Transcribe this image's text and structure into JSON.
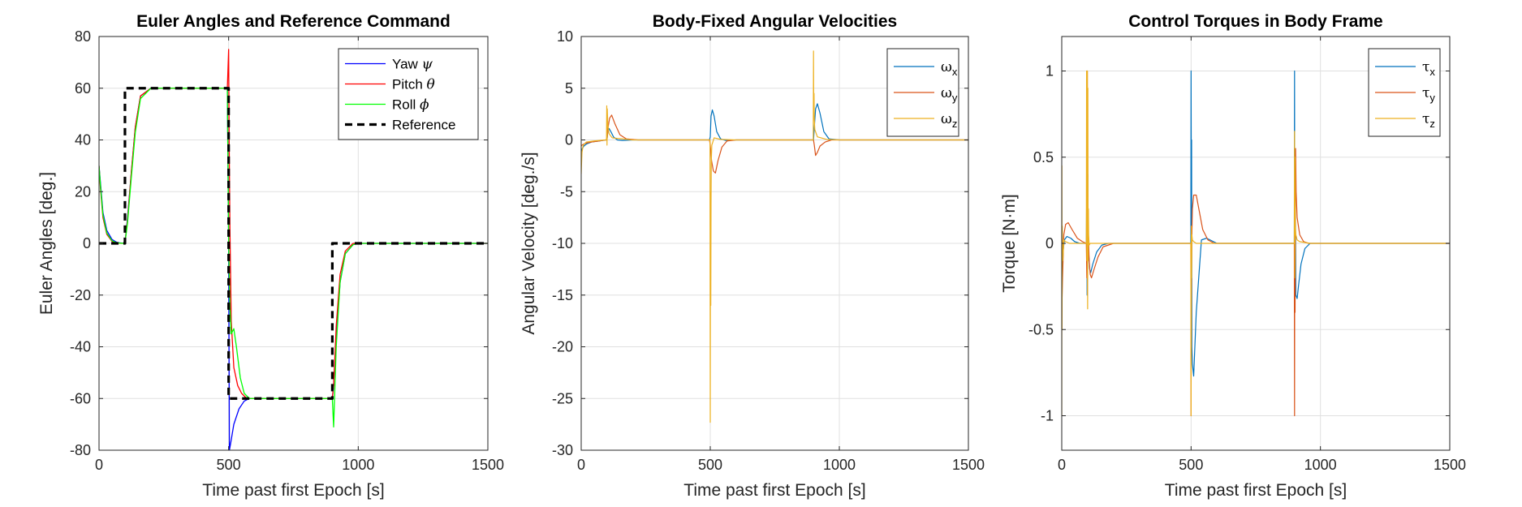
{
  "figure": {
    "background": "#ffffff",
    "grid_color": "#e0e0e0",
    "axis_color": "#262626"
  },
  "chart_data": [
    {
      "type": "line",
      "title": "Euler Angles and Reference Command",
      "xlabel": "Time past first Epoch [s]",
      "ylabel": "Euler Angles [deg.]",
      "xlim": [
        0,
        1500
      ],
      "ylim": [
        -80,
        80
      ],
      "xticks": [
        0,
        500,
        1000,
        1500
      ],
      "yticks": [
        -80,
        -60,
        -40,
        -20,
        0,
        20,
        40,
        60,
        80
      ],
      "grid": true,
      "legend_position": "top-right",
      "series": [
        {
          "name": "Yaw ψ",
          "legend_main": "Yaw ",
          "legend_sym": "ψ",
          "color": "#0000ff",
          "width": 1.3,
          "dash": "",
          "x": [
            0,
            5,
            15,
            30,
            50,
            70,
            95,
            100,
            110,
            125,
            140,
            160,
            200,
            300,
            495,
            500,
            503,
            510,
            520,
            540,
            560,
            580,
            600,
            800,
            895,
            900,
            905,
            915,
            930,
            950,
            980,
            1000,
            1500
          ],
          "y": [
            30,
            24,
            12,
            5,
            1.5,
            0.3,
            0,
            0,
            10,
            28,
            45,
            57,
            60,
            60,
            60,
            0,
            -80,
            -76,
            -70,
            -64,
            -61,
            -60,
            -60,
            -60,
            -60,
            -60,
            -55,
            -35,
            -15,
            -4,
            -0.5,
            0,
            0
          ]
        },
        {
          "name": "Pitch θ",
          "legend_main": "Pitch ",
          "legend_sym": "θ",
          "color": "#ff0000",
          "width": 1.3,
          "dash": "",
          "x": [
            0,
            5,
            15,
            30,
            50,
            70,
            95,
            100,
            110,
            125,
            140,
            160,
            200,
            300,
            495,
            500,
            502,
            505,
            510,
            520,
            535,
            550,
            570,
            600,
            800,
            895,
            900,
            905,
            915,
            930,
            950,
            980,
            1000,
            1500
          ],
          "y": [
            30,
            22,
            10,
            3.5,
            0.8,
            0.1,
            0,
            0,
            9,
            28,
            45,
            57,
            60,
            60,
            60,
            75,
            40,
            5,
            -30,
            -48,
            -55,
            -58,
            -60,
            -60,
            -60,
            -60,
            -60,
            -55,
            -32,
            -12,
            -3,
            0,
            0,
            0
          ]
        },
        {
          "name": "Roll ϕ",
          "legend_main": "Roll ",
          "legend_sym": "ϕ",
          "color": "#00ff00",
          "width": 1.3,
          "dash": "",
          "x": [
            0,
            5,
            15,
            30,
            50,
            70,
            95,
            100,
            110,
            125,
            140,
            160,
            200,
            300,
            495,
            500,
            505,
            510,
            520,
            530,
            545,
            560,
            580,
            600,
            800,
            895,
            900,
            905,
            915,
            930,
            950,
            980,
            1000,
            1500
          ],
          "y": [
            30,
            23,
            11,
            4,
            1,
            0.2,
            0,
            0,
            8,
            26,
            43,
            56,
            60,
            60,
            60,
            0,
            -25,
            -35,
            -33,
            -40,
            -52,
            -58,
            -60,
            -60,
            -60,
            -60,
            -60,
            -71,
            -40,
            -15,
            -4,
            -0.5,
            0,
            0
          ]
        },
        {
          "name": "Reference",
          "legend_main": "Reference",
          "legend_sym": "",
          "color": "#000000",
          "width": 3.2,
          "dash": "9 6",
          "x": [
            0,
            100,
            100,
            500,
            500,
            900,
            900,
            1500
          ],
          "y": [
            0,
            0,
            60,
            60,
            -60,
            -60,
            0,
            0
          ]
        }
      ]
    },
    {
      "type": "line",
      "title": "Body-Fixed Angular Velocities",
      "xlabel": "Time past first Epoch [s]",
      "ylabel": "Angular Velocity [deg./s]",
      "xlim": [
        0,
        1500
      ],
      "ylim": [
        -30,
        10
      ],
      "xticks": [
        0,
        500,
        1000,
        1500
      ],
      "yticks": [
        -30,
        -25,
        -20,
        -15,
        -10,
        -5,
        0,
        5,
        10
      ],
      "grid": true,
      "legend_position": "top-right",
      "series": [
        {
          "name": "ωx",
          "legend_main": "ω",
          "legend_sym": "x",
          "color": "#0072bd",
          "width": 1.2,
          "dash": "",
          "x": [
            0,
            3,
            10,
            20,
            40,
            70,
            95,
            100,
            103,
            108,
            115,
            125,
            140,
            160,
            200,
            400,
            497,
            500,
            503,
            508,
            515,
            525,
            540,
            560,
            600,
            895,
            900,
            903,
            908,
            915,
            925,
            940,
            960,
            1000,
            1500
          ],
          "y": [
            -1.5,
            -0.9,
            -0.6,
            -0.4,
            -0.2,
            -0.1,
            0,
            0,
            0.8,
            1.1,
            0.8,
            0.3,
            0,
            -0.05,
            0,
            0,
            0,
            0.3,
            2.3,
            2.9,
            2.3,
            0.8,
            0.1,
            -0.05,
            0,
            0,
            0,
            1.2,
            3.0,
            3.5,
            2.6,
            0.8,
            0.1,
            0,
            0
          ]
        },
        {
          "name": "ωy",
          "legend_main": "ω",
          "legend_sym": "y",
          "color": "#d95319",
          "width": 1.2,
          "dash": "",
          "x": [
            0,
            3,
            10,
            20,
            40,
            70,
            95,
            100,
            104,
            110,
            118,
            130,
            150,
            175,
            220,
            400,
            497,
            500,
            505,
            512,
            520,
            530,
            545,
            565,
            600,
            895,
            900,
            903,
            908,
            915,
            925,
            945,
            970,
            1000,
            1500
          ],
          "y": [
            -0.6,
            -0.5,
            -0.4,
            -0.3,
            -0.2,
            -0.1,
            0,
            0,
            1.2,
            2.1,
            2.4,
            1.6,
            0.5,
            0.1,
            0,
            0,
            0,
            -0.5,
            -2.0,
            -3.0,
            -3.2,
            -2.0,
            -0.7,
            -0.1,
            0,
            0,
            0,
            -0.5,
            -1.5,
            -1.2,
            -0.6,
            -0.2,
            0,
            0,
            0
          ]
        },
        {
          "name": "ωz",
          "legend_main": "ω",
          "legend_sym": "z",
          "color": "#edb120",
          "width": 1.2,
          "dash": "",
          "x": [
            0,
            1,
            3,
            8,
            20,
            50,
            95,
            98,
            99,
            100,
            101,
            103,
            108,
            120,
            200,
            497,
            498,
            499,
            500,
            501,
            502,
            503,
            504,
            506,
            515,
            540,
            600,
            897,
            898,
            899,
            900,
            901,
            902,
            903,
            905,
            915,
            950,
            1000,
            1500
          ],
          "y": [
            -3.3,
            -2.5,
            -1.2,
            -0.5,
            -0.2,
            -0.1,
            0,
            0,
            3.3,
            -0.5,
            3.0,
            1.5,
            0.6,
            0.2,
            0,
            0,
            0,
            0,
            -27.3,
            -5,
            -16,
            -6,
            -2,
            -0.5,
            0.2,
            0.05,
            0,
            0,
            0,
            0,
            8.6,
            2,
            4.5,
            2,
            1,
            0.3,
            0.05,
            0,
            0
          ]
        }
      ]
    },
    {
      "type": "line",
      "title": "Control Torques in Body Frame",
      "xlabel": "Time past first Epoch [s]",
      "ylabel": "Torque [N·m]",
      "xlim": [
        0,
        1500
      ],
      "ylim": [
        -1.2,
        1.2
      ],
      "xticks": [
        0,
        500,
        1000,
        1500
      ],
      "yticks": [
        -1,
        -0.5,
        0,
        0.5,
        1
      ],
      "ytick_labels": [
        "-1",
        "-0.5",
        "0",
        "0.5",
        "1"
      ],
      "grid": true,
      "legend_position": "top-right",
      "series": [
        {
          "name": "τx",
          "legend_main": "τ",
          "legend_sym": "x",
          "color": "#0072bd",
          "width": 1.2,
          "dash": "",
          "x": [
            0,
            2,
            5,
            10,
            20,
            35,
            50,
            70,
            95,
            97,
            98,
            99,
            100,
            101,
            102,
            104,
            108,
            112,
            120,
            135,
            155,
            180,
            250,
            495,
            498,
            499,
            500,
            501,
            502,
            503,
            505,
            510,
            520,
            540,
            560,
            600,
            895,
            898,
            899,
            900,
            901,
            902,
            903,
            905,
            910,
            915,
            925,
            940,
            960,
            1000,
            1500
          ],
          "y": [
            -0.2,
            -0.1,
            -0.05,
            0.02,
            0.04,
            0.03,
            0.01,
            0,
            0,
            0.4,
            -0.3,
            0.9,
            -0.1,
            0.4,
            0.1,
            -0.05,
            -0.15,
            -0.17,
            -0.12,
            -0.05,
            -0.01,
            0,
            0,
            0,
            0,
            0,
            1.0,
            0.3,
            0.6,
            -0.6,
            -0.7,
            -0.77,
            -0.4,
            0.02,
            0.03,
            0,
            0,
            0,
            0,
            1.0,
            -0.4,
            0.5,
            0.3,
            -0.3,
            -0.32,
            -0.25,
            -0.12,
            -0.03,
            0,
            0,
            0
          ]
        },
        {
          "name": "τy",
          "legend_main": "τ",
          "legend_sym": "y",
          "color": "#d95319",
          "width": 1.2,
          "dash": "",
          "x": [
            0,
            3,
            8,
            15,
            25,
            40,
            60,
            80,
            95,
            97,
            99,
            100,
            101,
            103,
            106,
            110,
            115,
            125,
            140,
            160,
            200,
            495,
            498,
            499,
            500,
            501,
            503,
            505,
            510,
            520,
            530,
            545,
            565,
            590,
            650,
            895,
            898,
            899,
            900,
            901,
            902,
            904,
            906,
            910,
            920,
            935,
            955,
            990,
            1500
          ],
          "y": [
            -0.4,
            -0.2,
            0.05,
            0.11,
            0.12,
            0.08,
            0.03,
            0.01,
            0,
            -0.2,
            1.0,
            -0.3,
            0.3,
            0.05,
            -0.1,
            -0.18,
            -0.2,
            -0.15,
            -0.08,
            -0.02,
            0,
            0,
            0,
            0,
            -1.0,
            -0.3,
            0.05,
            0.2,
            0.28,
            0.28,
            0.2,
            0.08,
            0.02,
            0,
            0,
            0,
            0,
            0,
            -1.0,
            0.5,
            -0.4,
            0.55,
            0.3,
            0.15,
            0.05,
            0.01,
            0,
            0,
            0
          ]
        },
        {
          "name": "τz",
          "legend_main": "τ",
          "legend_sym": "z",
          "color": "#edb120",
          "width": 1.2,
          "dash": "",
          "x": [
            0,
            0.5,
            1,
            2,
            4,
            8,
            15,
            30,
            60,
            95,
            96,
            97,
            98,
            99,
            100,
            101,
            102,
            103,
            104,
            106,
            110,
            120,
            200,
            497,
            498,
            499,
            500,
            501,
            502,
            503,
            505,
            510,
            520,
            560,
            600,
            897,
            898,
            899,
            900,
            901,
            902,
            903,
            905,
            910,
            920,
            960,
            1000,
            1500
          ],
          "y": [
            -1.0,
            0.45,
            -0.5,
            0.1,
            -0.1,
            0.02,
            0.01,
            0,
            0,
            0,
            1.0,
            -0.1,
            0.5,
            1.0,
            -0.38,
            0.9,
            -0.1,
            0.2,
            0.05,
            -0.01,
            0,
            0,
            0,
            0,
            0,
            0,
            -1.0,
            0.1,
            -0.2,
            0.05,
            0.02,
            0.01,
            0,
            0,
            0,
            0,
            0,
            0,
            0.65,
            -0.2,
            0.5,
            0.1,
            0.05,
            0.02,
            0.01,
            0,
            0,
            0
          ]
        }
      ]
    }
  ]
}
